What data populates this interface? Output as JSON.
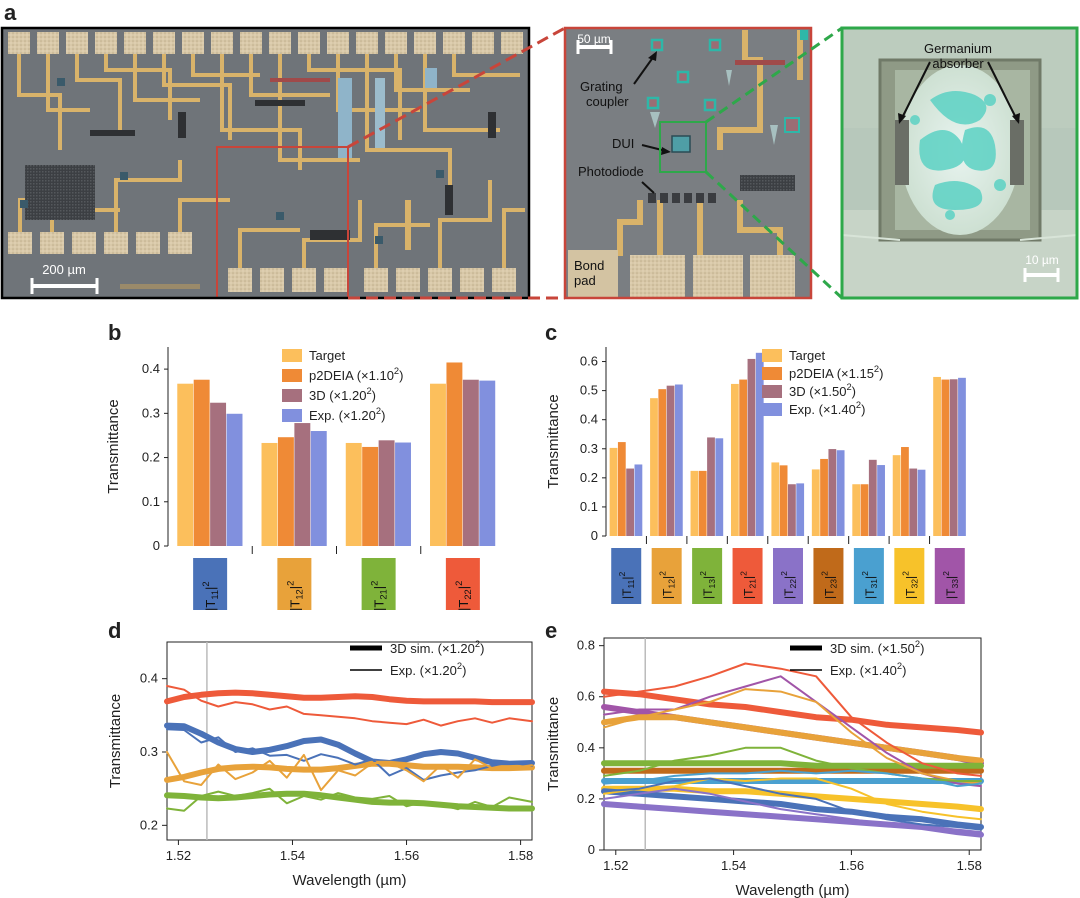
{
  "panel_labels": {
    "a": "a",
    "b": "b",
    "c": "c",
    "d": "d",
    "e": "e"
  },
  "panel_a": {
    "scale_left": "200 µm",
    "scale_middle": "50 µm",
    "scale_right": "10 µm",
    "label_grating": "Grating\ncoupler",
    "label_dui": "DUI",
    "label_photodiode": "Photodiode",
    "label_bond": "Bond\npad",
    "label_germanium": "Germanium\nabsorber",
    "colors": {
      "outline_left": "#000000",
      "outline_mid": "#c8453a",
      "outline_right": "#2ea84a"
    }
  },
  "chart_data": [
    {
      "panel": "b",
      "type": "bar",
      "ylabel": "Transmittance",
      "ylim": [
        0,
        0.45
      ],
      "yticks": [
        0,
        0.1,
        0.2,
        0.3,
        0.4
      ],
      "ytick_labels": [
        "0",
        "0.1",
        "0.2",
        "0.3",
        "0.4"
      ],
      "categories": [
        "|T11|2",
        "|T12|2",
        "|T21|2",
        "|T22|2"
      ],
      "category_parts": [
        [
          "|T",
          "11",
          "|",
          "2"
        ],
        [
          "|T",
          "12",
          "|",
          "2"
        ],
        [
          "|T",
          "21",
          "|",
          "2"
        ],
        [
          "|T",
          "22",
          "|",
          "2"
        ]
      ],
      "category_colors": [
        "#4a72b8",
        "#e8a23a",
        "#7fb33a",
        "#ee5a3a"
      ],
      "legend": [
        {
          "name": "Target",
          "label": [
            "Target"
          ]
        },
        {
          "name": "p2DEIA (×1.10²)",
          "label": [
            "p2DEIA (×1.10",
            "2",
            ")"
          ]
        },
        {
          "name": "3D (×1.20²)",
          "label": [
            "3D (×1.20",
            "2",
            ")"
          ]
        },
        {
          "name": "Exp. (×1.20²)",
          "label": [
            "Exp. (×1.20",
            "2",
            ")"
          ]
        }
      ],
      "series_colors": [
        "#fcbf5c",
        "#ef8a36",
        "#a6707e",
        "#8190de"
      ],
      "series": [
        {
          "name": "Target",
          "values": [
            0.367,
            0.233,
            0.233,
            0.367
          ]
        },
        {
          "name": "p2DEIA (×1.10²)",
          "values": [
            0.376,
            0.246,
            0.224,
            0.415
          ]
        },
        {
          "name": "3D (×1.20²)",
          "values": [
            0.324,
            0.278,
            0.239,
            0.376
          ]
        },
        {
          "name": "Exp. (×1.20²)",
          "values": [
            0.299,
            0.26,
            0.234,
            0.374
          ]
        }
      ]
    },
    {
      "panel": "c",
      "type": "bar",
      "ylabel": "Transmittance",
      "ylim": [
        0,
        0.65
      ],
      "yticks": [
        0,
        0.1,
        0.2,
        0.3,
        0.4,
        0.5,
        0.6
      ],
      "ytick_labels": [
        "0",
        "0.1",
        "0.2",
        "0.3",
        "0.4",
        "0.5",
        "0.6"
      ],
      "categories": [
        "|T11|2",
        "|T12|2",
        "|T13|2",
        "|T21|2",
        "|T22|2",
        "|T23|2",
        "|T31|2",
        "|T32|2",
        "|T33|2"
      ],
      "category_parts": [
        [
          "|T",
          "11",
          "|",
          "2"
        ],
        [
          "|T",
          "12",
          "|",
          "2"
        ],
        [
          "|T",
          "13",
          "|",
          "2"
        ],
        [
          "|T",
          "21",
          "|",
          "2"
        ],
        [
          "|T",
          "22",
          "|",
          "2"
        ],
        [
          "|T",
          "23",
          "|",
          "2"
        ],
        [
          "|T",
          "31",
          "|",
          "2"
        ],
        [
          "|T",
          "32",
          "|",
          "2"
        ],
        [
          "|T",
          "33",
          "|",
          "2"
        ]
      ],
      "category_colors": [
        "#4a72b8",
        "#e8a23a",
        "#7fb33a",
        "#ee5a3a",
        "#8a72c8",
        "#c06a1a",
        "#4aa0d0",
        "#f7c22a",
        "#a155a8"
      ],
      "legend": [
        {
          "name": "Target",
          "label": [
            "Target"
          ]
        },
        {
          "name": "p2DEIA (×1.15²)",
          "label": [
            "p2DEIA (×1.15",
            "2",
            ")"
          ]
        },
        {
          "name": "3D (×1.50²)",
          "label": [
            "3D (×1.50",
            "2",
            ")"
          ]
        },
        {
          "name": "Exp. (×1.40²)",
          "label": [
            "Exp. (×1.40",
            "2",
            ")"
          ]
        }
      ],
      "series_colors": [
        "#fcbf5c",
        "#ef8a36",
        "#a6707e",
        "#8190de"
      ],
      "series": [
        {
          "name": "Target",
          "values": [
            0.303,
            0.474,
            0.224,
            0.523,
            0.253,
            0.229,
            0.178,
            0.278,
            0.547
          ]
        },
        {
          "name": "p2DEIA (×1.15²)",
          "values": [
            0.323,
            0.505,
            0.224,
            0.538,
            0.243,
            0.265,
            0.178,
            0.306,
            0.538
          ]
        },
        {
          "name": "3D (×1.50²)",
          "values": [
            0.232,
            0.517,
            0.339,
            0.609,
            0.178,
            0.299,
            0.262,
            0.232,
            0.539
          ]
        },
        {
          "name": "Exp. (×1.40²)",
          "values": [
            0.246,
            0.521,
            0.336,
            0.63,
            0.181,
            0.295,
            0.244,
            0.228,
            0.544
          ]
        }
      ]
    },
    {
      "panel": "d",
      "type": "line",
      "xlabel": "Wavelength (µm)",
      "ylabel": "Transmittance",
      "xlim": [
        1.518,
        1.582
      ],
      "ylim": [
        0.18,
        0.45
      ],
      "xticks": [
        1.52,
        1.54,
        1.56,
        1.58
      ],
      "xtick_labels": [
        "1.52",
        "1.54",
        "1.56",
        "1.58"
      ],
      "yticks": [
        0.2,
        0.3,
        0.4
      ],
      "ytick_labels": [
        "0.2",
        "0.3",
        "0.4"
      ],
      "vline": 1.525,
      "legend": [
        {
          "name": "3D sim. (×1.20²)",
          "style": "thick",
          "label": [
            "3D sim. (×1.20",
            "2",
            ")"
          ]
        },
        {
          "name": "Exp. (×1.20²)",
          "style": "thin",
          "label": [
            "Exp. (×1.20",
            "2",
            ")"
          ]
        }
      ],
      "x": [
        1.518,
        1.521,
        1.524,
        1.527,
        1.53,
        1.533,
        1.536,
        1.539,
        1.542,
        1.545,
        1.548,
        1.551,
        1.554,
        1.557,
        1.56,
        1.563,
        1.566,
        1.569,
        1.572,
        1.575,
        1.578,
        1.582
      ],
      "series": [
        {
          "name": "T22 sim",
          "color": "#ee5a3a",
          "style": "thick",
          "values": [
            0.369,
            0.375,
            0.378,
            0.38,
            0.381,
            0.38,
            0.378,
            0.376,
            0.374,
            0.374,
            0.375,
            0.376,
            0.375,
            0.372,
            0.37,
            0.369,
            0.369,
            0.369,
            0.369,
            0.368,
            0.368,
            0.368
          ]
        },
        {
          "name": "T22 exp",
          "color": "#ee5a3a",
          "style": "thin",
          "values": [
            0.39,
            0.385,
            0.37,
            0.362,
            0.368,
            0.365,
            0.358,
            0.362,
            0.352,
            0.35,
            0.348,
            0.346,
            0.342,
            0.34,
            0.338,
            0.344,
            0.336,
            0.342,
            0.346,
            0.34,
            0.346,
            0.342
          ]
        },
        {
          "name": "T11 sim",
          "color": "#4a72b8",
          "style": "thick",
          "values": [
            0.336,
            0.335,
            0.325,
            0.313,
            0.304,
            0.3,
            0.303,
            0.308,
            0.315,
            0.317,
            0.31,
            0.298,
            0.287,
            0.285,
            0.29,
            0.297,
            0.3,
            0.298,
            0.292,
            0.286,
            0.284,
            0.285
          ]
        },
        {
          "name": "T11 exp",
          "color": "#4a72b8",
          "style": "thin",
          "values": [
            0.331,
            0.33,
            0.313,
            0.32,
            0.3,
            0.305,
            0.295,
            0.296,
            0.288,
            0.297,
            0.292,
            0.283,
            0.29,
            0.268,
            0.278,
            0.262,
            0.268,
            0.272,
            0.275,
            0.281,
            0.286,
            0.281
          ]
        },
        {
          "name": "T12 sim",
          "color": "#e8a23a",
          "style": "thick",
          "values": [
            0.262,
            0.266,
            0.272,
            0.277,
            0.279,
            0.28,
            0.279,
            0.277,
            0.276,
            0.276,
            0.278,
            0.281,
            0.284,
            0.284,
            0.282,
            0.28,
            0.28,
            0.28,
            0.279,
            0.278,
            0.278,
            0.279
          ]
        },
        {
          "name": "T12 exp",
          "color": "#e8a23a",
          "style": "thin",
          "values": [
            0.3,
            0.26,
            0.255,
            0.283,
            0.263,
            0.272,
            0.288,
            0.265,
            0.296,
            0.248,
            0.275,
            0.268,
            0.285,
            0.285,
            0.275,
            0.26,
            0.282,
            0.265,
            0.29,
            0.278,
            0.278,
            0.282
          ]
        },
        {
          "name": "T21 sim",
          "color": "#7fb33a",
          "style": "thick",
          "values": [
            0.241,
            0.24,
            0.238,
            0.237,
            0.238,
            0.24,
            0.242,
            0.243,
            0.243,
            0.241,
            0.238,
            0.235,
            0.232,
            0.231,
            0.231,
            0.23,
            0.228,
            0.226,
            0.225,
            0.224,
            0.223,
            0.223
          ]
        },
        {
          "name": "T21 exp",
          "color": "#7fb33a",
          "style": "thin",
          "values": [
            0.223,
            0.22,
            0.24,
            0.246,
            0.24,
            0.244,
            0.25,
            0.23,
            0.24,
            0.235,
            0.244,
            0.238,
            0.236,
            0.24,
            0.226,
            0.232,
            0.228,
            0.222,
            0.232,
            0.225,
            0.238,
            0.232
          ]
        }
      ]
    },
    {
      "panel": "e",
      "type": "line",
      "xlabel": "Wavelength (µm)",
      "ylabel": "Transmittance",
      "xlim": [
        1.518,
        1.582
      ],
      "ylim": [
        0,
        0.83
      ],
      "xticks": [
        1.52,
        1.54,
        1.56,
        1.58
      ],
      "xtick_labels": [
        "1.52",
        "1.54",
        "1.56",
        "1.58"
      ],
      "yticks": [
        0,
        0.2,
        0.4,
        0.6,
        0.8
      ],
      "ytick_labels": [
        "0",
        "0.2",
        "0.4",
        "0.6",
        "0.8"
      ],
      "vline": 1.525,
      "legend": [
        {
          "name": "3D sim. (×1.50²)",
          "style": "thick",
          "label": [
            "3D sim. (×1.50",
            "2",
            ")"
          ]
        },
        {
          "name": "Exp. (×1.40²)",
          "style": "thin",
          "label": [
            "Exp. (×1.40",
            "2",
            ")"
          ]
        }
      ],
      "x": [
        1.518,
        1.524,
        1.53,
        1.536,
        1.542,
        1.548,
        1.554,
        1.56,
        1.566,
        1.572,
        1.578,
        1.582
      ],
      "series": [
        {
          "name": "T21 sim",
          "color": "#ee5a3a",
          "style": "thick",
          "values": [
            0.62,
            0.61,
            0.59,
            0.57,
            0.56,
            0.54,
            0.52,
            0.51,
            0.49,
            0.48,
            0.47,
            0.46
          ]
        },
        {
          "name": "T21 exp",
          "color": "#ee5a3a",
          "style": "thin",
          "values": [
            0.6,
            0.62,
            0.64,
            0.68,
            0.73,
            0.71,
            0.68,
            0.52,
            0.42,
            0.34,
            0.3,
            0.29
          ]
        },
        {
          "name": "T33 sim",
          "color": "#a155a8",
          "style": "thick",
          "values": [
            0.56,
            0.54,
            0.52,
            0.5,
            0.48,
            0.46,
            0.44,
            0.42,
            0.4,
            0.38,
            0.36,
            0.34
          ]
        },
        {
          "name": "T33 exp",
          "color": "#a155a8",
          "style": "thin",
          "values": [
            0.53,
            0.55,
            0.55,
            0.6,
            0.64,
            0.68,
            0.58,
            0.48,
            0.38,
            0.3,
            0.26,
            0.25
          ]
        },
        {
          "name": "T12 sim",
          "color": "#e8a23a",
          "style": "thick",
          "values": [
            0.5,
            0.52,
            0.52,
            0.5,
            0.48,
            0.46,
            0.44,
            0.42,
            0.4,
            0.38,
            0.36,
            0.35
          ]
        },
        {
          "name": "T12 exp",
          "color": "#e8a23a",
          "style": "thin",
          "values": [
            0.48,
            0.52,
            0.55,
            0.58,
            0.63,
            0.62,
            0.58,
            0.46,
            0.36,
            0.3,
            0.27,
            0.26
          ]
        },
        {
          "name": "T23 sim",
          "color": "#c06a1a",
          "style": "thick",
          "values": [
            0.31,
            0.31,
            0.31,
            0.31,
            0.31,
            0.31,
            0.31,
            0.31,
            0.31,
            0.31,
            0.31,
            0.31
          ]
        },
        {
          "name": "T13 sim",
          "color": "#7fb33a",
          "style": "thick",
          "values": [
            0.34,
            0.34,
            0.34,
            0.34,
            0.34,
            0.34,
            0.33,
            0.33,
            0.33,
            0.33,
            0.33,
            0.33
          ]
        },
        {
          "name": "T13 exp",
          "color": "#7fb33a",
          "style": "thin",
          "values": [
            0.29,
            0.31,
            0.35,
            0.37,
            0.4,
            0.4,
            0.35,
            0.32,
            0.3,
            0.28,
            0.27,
            0.27
          ]
        },
        {
          "name": "T31 sim",
          "color": "#4aa0d0",
          "style": "thick",
          "values": [
            0.27,
            0.27,
            0.27,
            0.27,
            0.27,
            0.27,
            0.27,
            0.27,
            0.27,
            0.27,
            0.27,
            0.27
          ]
        },
        {
          "name": "T31 exp",
          "color": "#4aa0d0",
          "style": "thin",
          "values": [
            0.26,
            0.27,
            0.29,
            0.3,
            0.3,
            0.31,
            0.3,
            0.31,
            0.3,
            0.28,
            0.25,
            0.26
          ]
        },
        {
          "name": "T32 sim",
          "color": "#f7c22a",
          "style": "thick",
          "values": [
            0.24,
            0.24,
            0.24,
            0.23,
            0.23,
            0.22,
            0.21,
            0.2,
            0.19,
            0.18,
            0.17,
            0.16
          ]
        },
        {
          "name": "T32 exp",
          "color": "#f7c22a",
          "style": "thin",
          "values": [
            0.22,
            0.24,
            0.25,
            0.28,
            0.27,
            0.28,
            0.28,
            0.24,
            0.18,
            0.15,
            0.13,
            0.12
          ]
        },
        {
          "name": "T11 sim",
          "color": "#4a72b8",
          "style": "thick",
          "values": [
            0.23,
            0.22,
            0.21,
            0.2,
            0.19,
            0.18,
            0.16,
            0.15,
            0.13,
            0.12,
            0.1,
            0.09
          ]
        },
        {
          "name": "T11 exp",
          "color": "#4a72b8",
          "style": "thin",
          "values": [
            0.23,
            0.24,
            0.27,
            0.28,
            0.25,
            0.22,
            0.2,
            0.15,
            0.12,
            0.1,
            0.09,
            0.08
          ]
        },
        {
          "name": "T22 sim",
          "color": "#8a72c8",
          "style": "thick",
          "values": [
            0.18,
            0.17,
            0.16,
            0.15,
            0.14,
            0.13,
            0.12,
            0.11,
            0.1,
            0.09,
            0.07,
            0.06
          ]
        },
        {
          "name": "T22 exp",
          "color": "#8a72c8",
          "style": "thin",
          "values": [
            0.2,
            0.22,
            0.24,
            0.22,
            0.19,
            0.16,
            0.14,
            0.12,
            0.1,
            0.09,
            0.08,
            0.07
          ]
        }
      ]
    }
  ]
}
